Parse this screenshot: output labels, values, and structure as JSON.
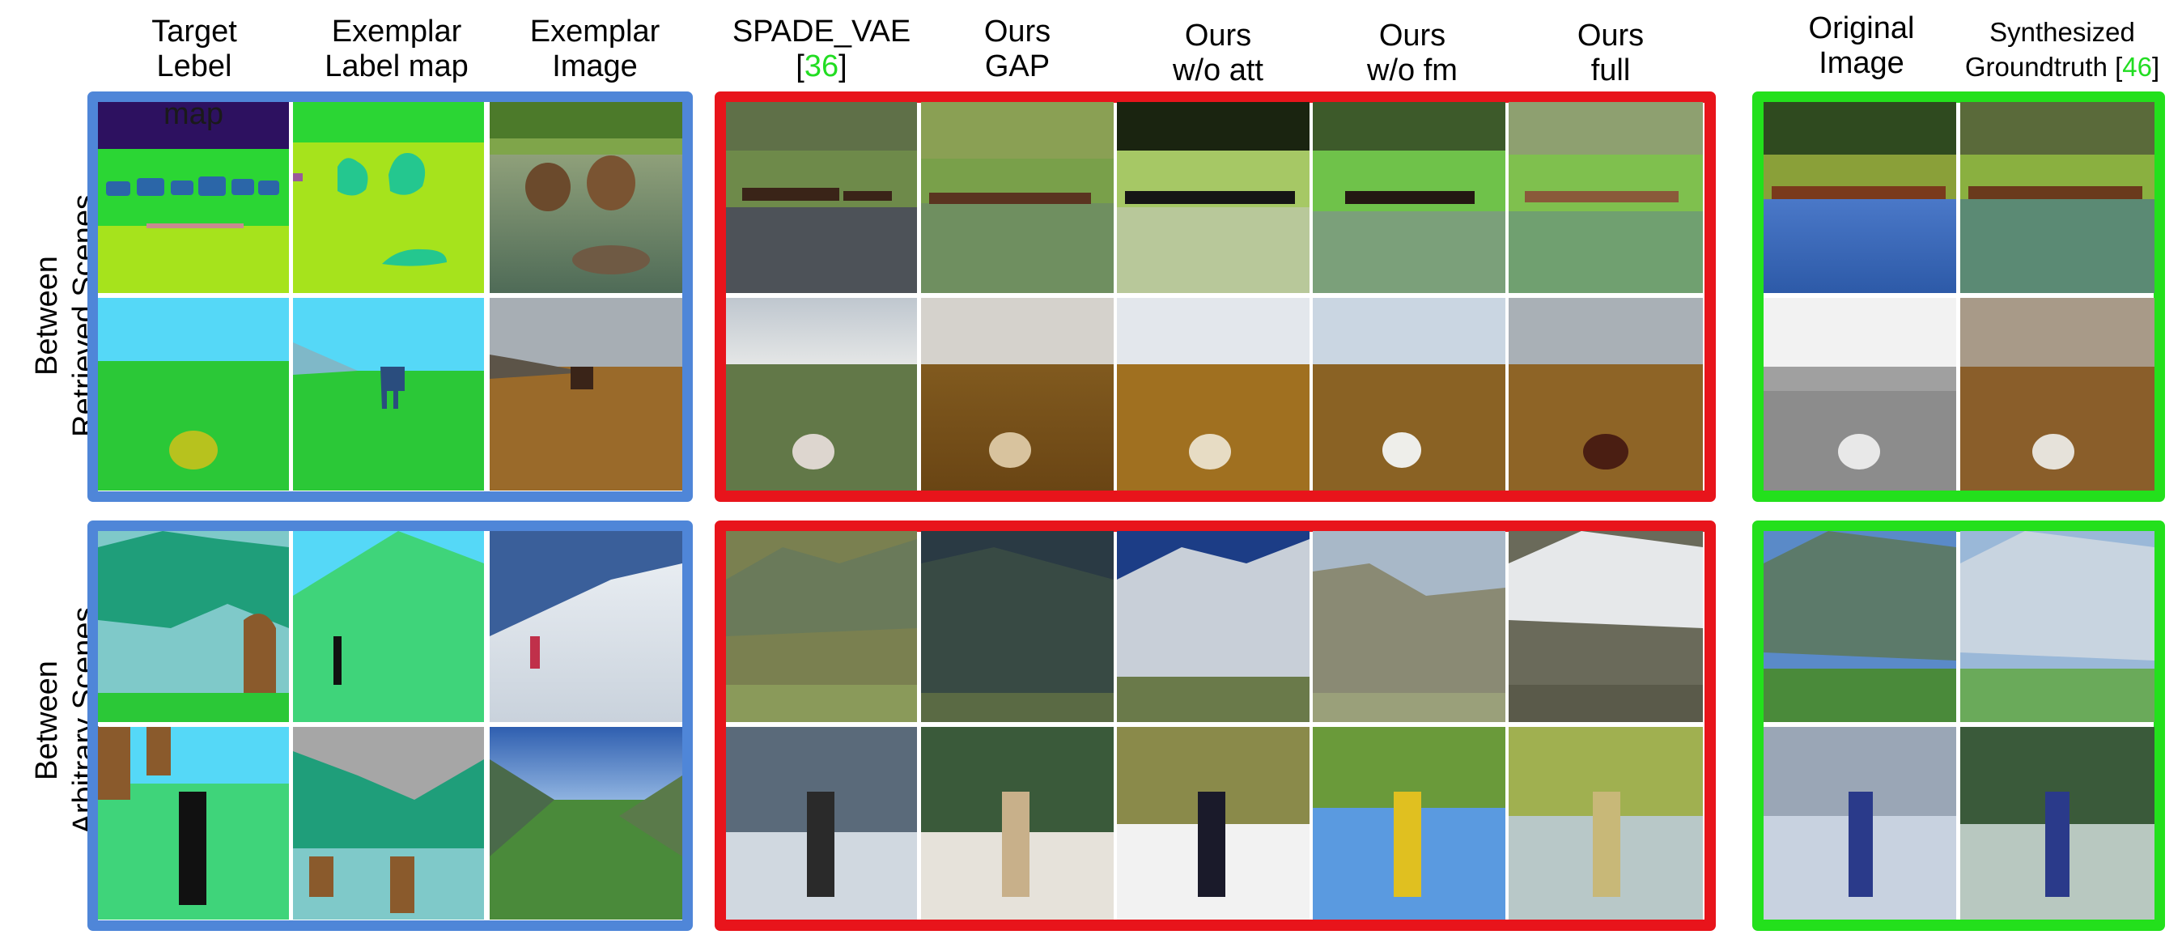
{
  "headers": {
    "target_label": [
      "Target",
      "Lebel"
    ],
    "target_label_overflow": "map",
    "exemplar_label": [
      "Exemplar",
      "Label map"
    ],
    "exemplar_image": [
      "Exemplar",
      "Image"
    ],
    "spade_vae": {
      "line1": "SPADE_VAE",
      "open": "[",
      "ref": "36",
      "close": "]"
    },
    "ours_gap": [
      "Ours",
      "GAP"
    ],
    "ours_wo_att": [
      "Ours",
      "w/o att"
    ],
    "ours_wo_fm": [
      "Ours",
      "w/o fm"
    ],
    "ours_full": [
      "Ours",
      "full"
    ],
    "original_image": [
      "Original",
      "Image"
    ],
    "synth_gt": {
      "line1": "Synthesized",
      "line2": "Groundtruth ",
      "open": "[",
      "ref": "46",
      "close": "]"
    }
  },
  "row_labels": {
    "retrieved": [
      "Between",
      "Retrieved Scenes"
    ],
    "arbitrary": [
      "Between",
      "Arbitrary Scenes"
    ]
  },
  "colors": {
    "input_frame": "#4f86d8",
    "method_frame": "#e8141b",
    "reference_frame": "#23e01c",
    "citation_text": "#22dd22"
  },
  "columns": [
    "target-label-map",
    "exemplar-label-map",
    "exemplar-image",
    "spade-vae",
    "ours-gap",
    "ours-wo-att",
    "ours-wo-fm",
    "ours-full",
    "original-image",
    "synthesized-groundtruth"
  ],
  "rows": [
    "retrieved-horses",
    "retrieved-sheep",
    "arbitrary-mountain",
    "arbitrary-skier"
  ]
}
